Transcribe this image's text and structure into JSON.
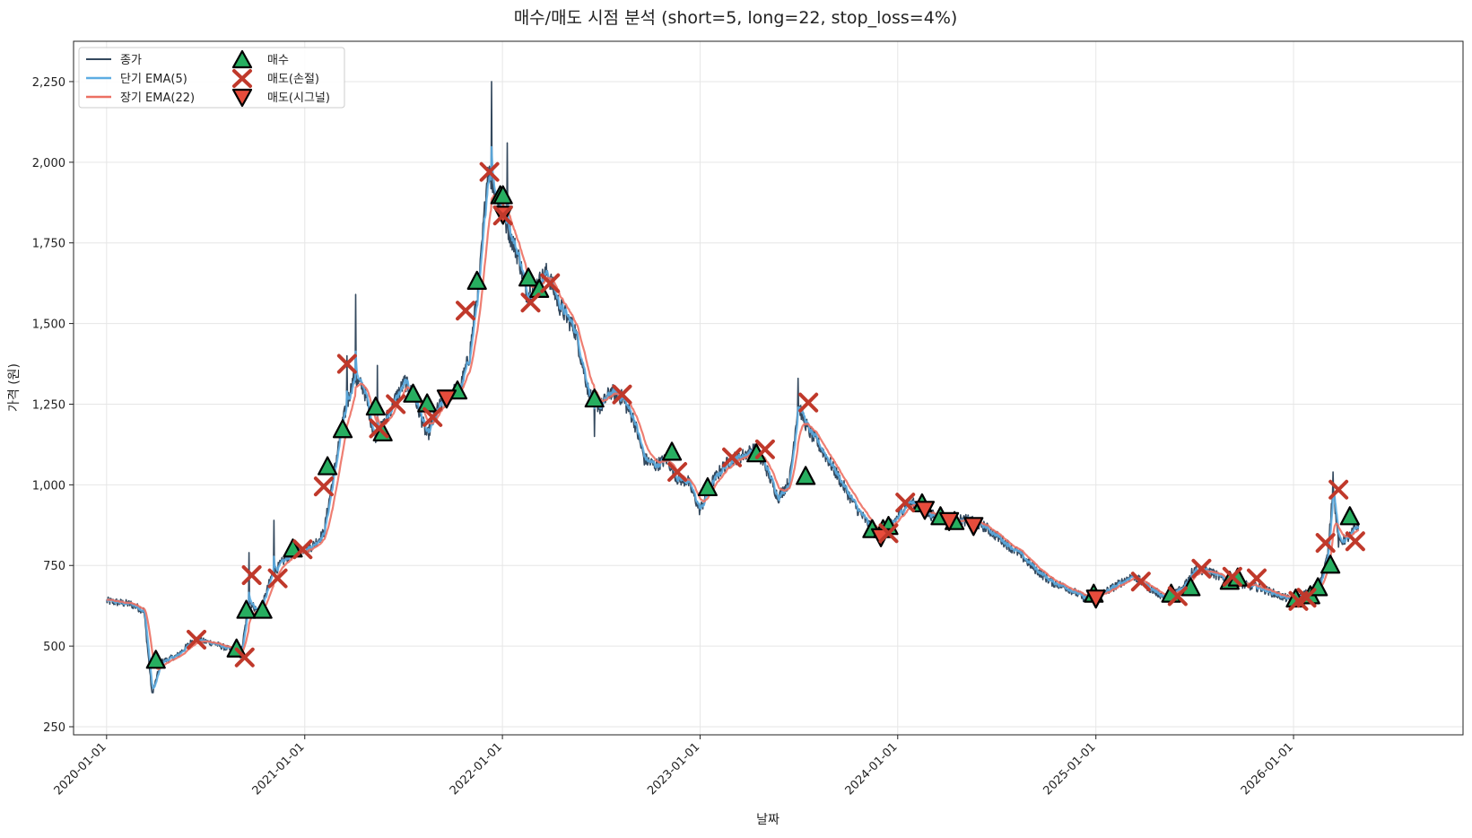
{
  "chart_data": {
    "type": "line",
    "title": "매수/매도 시점 분석 (short=5, long=22, stop_loss=4%)",
    "xlabel": "날짜",
    "ylabel": "가격 (원)",
    "ylim": [
      225,
      2375
    ],
    "xlim": [
      "2019-11-01",
      "2026-11-10"
    ],
    "x_ticks": [
      "2020-01-01",
      "2021-01-01",
      "2022-01-01",
      "2023-01-01",
      "2024-01-01",
      "2025-01-01",
      "2026-01-01"
    ],
    "y_ticks": [
      250,
      500,
      750,
      1000,
      1250,
      1500,
      1750,
      2000,
      2250
    ],
    "y_tick_labels": [
      "250",
      "500",
      "750",
      "1,000",
      "1,250",
      "1,500",
      "1,750",
      "2,000",
      "2,250"
    ],
    "grid": true,
    "legend_position": "top-left",
    "colors": {
      "close": "#34495e",
      "ema_short": "#5dade2",
      "ema_long": "#ec7063",
      "buy": "#27ae60",
      "sell_stop": "#c0392b",
      "sell_signal": "#e74c3c"
    },
    "series": [
      {
        "name": "종가",
        "key": "close"
      },
      {
        "name": "단기 EMA(5)",
        "key": "ema_short"
      },
      {
        "name": "장기 EMA(22)",
        "key": "ema_long"
      }
    ],
    "markers": [
      {
        "name": "매수",
        "key": "buy",
        "shape": "triangle-up"
      },
      {
        "name": "매도(손절)",
        "key": "sell_stop",
        "shape": "x"
      },
      {
        "name": "매도(시그널)",
        "key": "sell_signal",
        "shape": "triangle-down"
      }
    ],
    "price_anchors": [
      [
        "2020-01-01",
        640
      ],
      [
        "2020-02-15",
        630
      ],
      [
        "2020-03-10",
        610
      ],
      [
        "2020-03-25",
        350
      ],
      [
        "2020-04-10",
        450
      ],
      [
        "2020-05-10",
        470
      ],
      [
        "2020-06-10",
        520
      ],
      [
        "2020-07-15",
        510
      ],
      [
        "2020-08-15",
        490
      ],
      [
        "2020-09-05",
        470
      ],
      [
        "2020-09-20",
        640
      ],
      [
        "2020-10-10",
        600
      ],
      [
        "2020-11-01",
        720
      ],
      [
        "2020-11-20",
        760
      ],
      [
        "2020-12-10",
        790
      ],
      [
        "2021-01-15",
        810
      ],
      [
        "2021-02-05",
        850
      ],
      [
        "2021-02-20",
        1000
      ],
      [
        "2021-03-10",
        1180
      ],
      [
        "2021-04-01",
        1330
      ],
      [
        "2021-04-20",
        1300
      ],
      [
        "2021-05-10",
        1150
      ],
      [
        "2021-05-25",
        1180
      ],
      [
        "2021-06-15",
        1260
      ],
      [
        "2021-07-05",
        1320
      ],
      [
        "2021-07-25",
        1260
      ],
      [
        "2021-08-15",
        1150
      ],
      [
        "2021-09-05",
        1240
      ],
      [
        "2021-09-25",
        1280
      ],
      [
        "2021-10-15",
        1300
      ],
      [
        "2021-11-01",
        1400
      ],
      [
        "2021-11-20",
        1650
      ],
      [
        "2021-12-05",
        1980
      ],
      [
        "2021-12-20",
        1900
      ],
      [
        "2022-01-10",
        1800
      ],
      [
        "2022-02-01",
        1700
      ],
      [
        "2022-02-15",
        1590
      ],
      [
        "2022-03-05",
        1620
      ],
      [
        "2022-03-25",
        1660
      ],
      [
        "2022-04-15",
        1560
      ],
      [
        "2022-05-15",
        1480
      ],
      [
        "2022-06-10",
        1280
      ],
      [
        "2022-07-01",
        1240
      ],
      [
        "2022-07-20",
        1290
      ],
      [
        "2022-08-10",
        1270
      ],
      [
        "2022-09-01",
        1200
      ],
      [
        "2022-09-20",
        1080
      ],
      [
        "2022-10-10",
        1060
      ],
      [
        "2022-11-01",
        1080
      ],
      [
        "2022-11-20",
        1020
      ],
      [
        "2022-12-10",
        1010
      ],
      [
        "2023-01-01",
        920
      ],
      [
        "2023-01-20",
        1000
      ],
      [
        "2023-02-10",
        1050
      ],
      [
        "2023-03-01",
        1080
      ],
      [
        "2023-03-20",
        1090
      ],
      [
        "2023-04-10",
        1110
      ],
      [
        "2023-05-01",
        1060
      ],
      [
        "2023-05-25",
        960
      ],
      [
        "2023-06-15",
        1010
      ],
      [
        "2023-07-01",
        1250
      ],
      [
        "2023-07-20",
        1170
      ],
      [
        "2023-08-10",
        1120
      ],
      [
        "2023-09-01",
        1060
      ],
      [
        "2023-09-25",
        990
      ],
      [
        "2023-10-20",
        920
      ],
      [
        "2023-11-20",
        850
      ],
      [
        "2023-12-10",
        860
      ],
      [
        "2024-01-01",
        900
      ],
      [
        "2024-01-20",
        950
      ],
      [
        "2024-02-10",
        930
      ],
      [
        "2024-03-10",
        900
      ],
      [
        "2024-04-10",
        890
      ],
      [
        "2024-05-10",
        890
      ],
      [
        "2024-06-10",
        870
      ],
      [
        "2024-07-10",
        830
      ],
      [
        "2024-08-10",
        790
      ],
      [
        "2024-09-10",
        740
      ],
      [
        "2024-10-10",
        700
      ],
      [
        "2024-11-10",
        680
      ],
      [
        "2024-12-10",
        650
      ],
      [
        "2025-01-10",
        660
      ],
      [
        "2025-02-10",
        690
      ],
      [
        "2025-03-10",
        720
      ],
      [
        "2025-04-10",
        680
      ],
      [
        "2025-05-10",
        650
      ],
      [
        "2025-06-10",
        680
      ],
      [
        "2025-07-01",
        740
      ],
      [
        "2025-08-01",
        730
      ],
      [
        "2025-09-01",
        700
      ],
      [
        "2025-10-01",
        690
      ],
      [
        "2025-11-01",
        680
      ],
      [
        "2025-12-01",
        660
      ],
      [
        "2026-01-01",
        640
      ],
      [
        "2026-02-01",
        670
      ],
      [
        "2026-02-20",
        700
      ],
      [
        "2026-03-05",
        780
      ],
      [
        "2026-03-15",
        1000
      ],
      [
        "2026-03-25",
        820
      ],
      [
        "2026-04-15",
        840
      ],
      [
        "2026-05-01",
        880
      ]
    ],
    "spikes": [
      [
        "2020-09-20",
        790
      ],
      [
        "2020-11-05",
        890
      ],
      [
        "2021-03-20",
        1400
      ],
      [
        "2021-04-05",
        1590
      ],
      [
        "2021-05-15",
        1370
      ],
      [
        "2021-12-12",
        2250
      ],
      [
        "2022-01-10",
        2060
      ],
      [
        "2022-06-20",
        1150
      ],
      [
        "2023-07-01",
        1330
      ],
      [
        "2026-03-15",
        1040
      ]
    ],
    "buy": [
      [
        "2020-04-01",
        455
      ],
      [
        "2020-08-28",
        490
      ],
      [
        "2020-09-15",
        610
      ],
      [
        "2020-10-15",
        610
      ],
      [
        "2020-12-10",
        800
      ],
      [
        "2021-02-12",
        1055
      ],
      [
        "2021-03-12",
        1170
      ],
      [
        "2021-05-12",
        1240
      ],
      [
        "2021-05-25",
        1160
      ],
      [
        "2021-07-20",
        1280
      ],
      [
        "2021-08-15",
        1250
      ],
      [
        "2021-10-10",
        1290
      ],
      [
        "2021-11-15",
        1630
      ],
      [
        "2021-12-28",
        1895
      ],
      [
        "2022-01-02",
        1895
      ],
      [
        "2022-02-18",
        1640
      ],
      [
        "2022-03-10",
        1605
      ],
      [
        "2022-06-20",
        1265
      ],
      [
        "2022-11-10",
        1100
      ],
      [
        "2023-01-15",
        990
      ],
      [
        "2023-04-15",
        1095
      ],
      [
        "2023-07-15",
        1025
      ],
      [
        "2023-11-15",
        860
      ],
      [
        "2023-12-05",
        860
      ],
      [
        "2023-12-15",
        870
      ],
      [
        "2024-02-15",
        940
      ],
      [
        "2024-03-20",
        900
      ],
      [
        "2024-04-15",
        885
      ],
      [
        "2024-12-28",
        660
      ],
      [
        "2025-05-20",
        660
      ],
      [
        "2025-06-25",
        680
      ],
      [
        "2025-09-05",
        700
      ],
      [
        "2025-09-20",
        710
      ],
      [
        "2026-01-05",
        645
      ],
      [
        "2026-02-01",
        655
      ],
      [
        "2026-02-15",
        680
      ],
      [
        "2026-03-10",
        750
      ],
      [
        "2026-04-15",
        900
      ]
    ],
    "sell_stop": [
      [
        "2020-06-15",
        520
      ],
      [
        "2020-09-12",
        465
      ],
      [
        "2020-09-25",
        720
      ],
      [
        "2020-11-12",
        710
      ],
      [
        "2020-12-28",
        800
      ],
      [
        "2021-02-05",
        995
      ],
      [
        "2021-03-20",
        1375
      ],
      [
        "2021-05-18",
        1175
      ],
      [
        "2021-06-18",
        1250
      ],
      [
        "2021-08-25",
        1210
      ],
      [
        "2021-10-25",
        1540
      ],
      [
        "2021-12-08",
        1970
      ],
      [
        "2022-01-02",
        1835
      ],
      [
        "2022-02-22",
        1565
      ],
      [
        "2022-03-30",
        1625
      ],
      [
        "2022-08-10",
        1280
      ],
      [
        "2022-11-20",
        1040
      ],
      [
        "2023-03-01",
        1085
      ],
      [
        "2023-05-01",
        1110
      ],
      [
        "2023-07-20",
        1255
      ],
      [
        "2023-12-15",
        850
      ],
      [
        "2024-01-15",
        945
      ],
      [
        "2025-03-25",
        700
      ],
      [
        "2025-06-01",
        655
      ],
      [
        "2025-07-15",
        740
      ],
      [
        "2025-09-10",
        715
      ],
      [
        "2025-10-25",
        710
      ],
      [
        "2026-01-10",
        640
      ],
      [
        "2026-01-25",
        650
      ],
      [
        "2026-03-01",
        820
      ],
      [
        "2026-03-25",
        985
      ],
      [
        "2026-04-25",
        825
      ]
    ],
    "sell_signal": [
      [
        "2021-09-20",
        1270
      ],
      [
        "2022-01-02",
        1840
      ],
      [
        "2023-12-01",
        840
      ],
      [
        "2024-02-20",
        925
      ],
      [
        "2024-04-05",
        890
      ],
      [
        "2024-05-20",
        875
      ],
      [
        "2025-01-01",
        650
      ]
    ]
  }
}
